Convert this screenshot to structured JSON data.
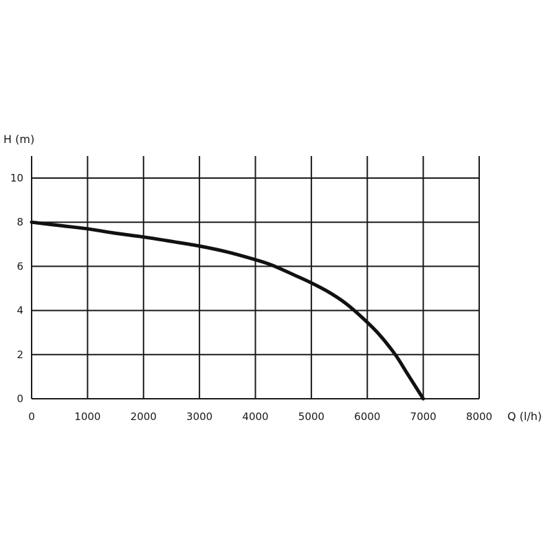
{
  "chart_data": {
    "type": "line",
    "xlabel": "Q (l/h)",
    "ylabel": "H (m)",
    "xlim": [
      0,
      8000
    ],
    "ylim": [
      0,
      11
    ],
    "x_ticks": [
      0,
      1000,
      2000,
      3000,
      4000,
      5000,
      6000,
      7000,
      8000
    ],
    "y_ticks": [
      0,
      2,
      4,
      6,
      8,
      10
    ],
    "x_tick_labels": [
      "0",
      "1000",
      "2000",
      "3000",
      "4000",
      "5000",
      "6000",
      "7000",
      "8000"
    ],
    "y_tick_labels": [
      "0",
      "2",
      "4",
      "6",
      "8",
      "10"
    ],
    "grid": true,
    "series": [
      {
        "x": [
          0,
          500,
          1000,
          1500,
          2000,
          2500,
          3000,
          3500,
          4000,
          4300,
          4700,
          5000,
          5300,
          5600,
          5900,
          6200,
          6500,
          6700,
          6850,
          7000
        ],
        "y": [
          8.0,
          7.85,
          7.7,
          7.5,
          7.33,
          7.13,
          6.92,
          6.65,
          6.3,
          6.05,
          5.6,
          5.25,
          4.85,
          4.35,
          3.7,
          2.95,
          2.0,
          1.2,
          0.6,
          0.0
        ],
        "color": "#111111"
      }
    ]
  }
}
